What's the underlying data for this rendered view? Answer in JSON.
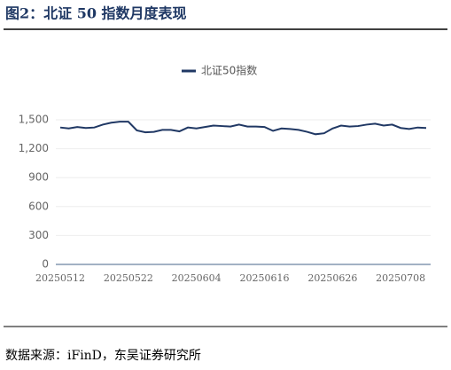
{
  "title": "图2：北证 50 指数月度表现",
  "source": "数据来源：iFinD，东吴证券研究所",
  "chart_data": {
    "type": "line",
    "categories": [
      "20250512",
      null,
      null,
      null,
      null,
      null,
      null,
      null,
      "20250522",
      null,
      null,
      null,
      null,
      null,
      null,
      null,
      "20250604",
      null,
      null,
      null,
      null,
      null,
      null,
      null,
      "20250616",
      null,
      null,
      null,
      null,
      null,
      null,
      null,
      "20250626",
      null,
      null,
      null,
      null,
      null,
      null,
      null,
      "20250708",
      null,
      null,
      null
    ],
    "series": [
      {
        "name": "北证50指数",
        "color": "#203864",
        "values": [
          1420,
          1410,
          1425,
          1415,
          1420,
          1450,
          1470,
          1480,
          1480,
          1390,
          1370,
          1375,
          1395,
          1395,
          1380,
          1420,
          1410,
          1425,
          1440,
          1435,
          1430,
          1450,
          1430,
          1430,
          1425,
          1385,
          1410,
          1405,
          1395,
          1375,
          1350,
          1360,
          1410,
          1440,
          1430,
          1435,
          1450,
          1460,
          1440,
          1450,
          1415,
          1405,
          1420,
          1415
        ]
      }
    ],
    "ylim": [
      0,
      1500
    ],
    "yticks": [
      0,
      300,
      600,
      900,
      {
        "value": 1200,
        "label": "1,200"
      },
      {
        "value": 1500,
        "label": "1,500"
      }
    ],
    "grid": true
  }
}
